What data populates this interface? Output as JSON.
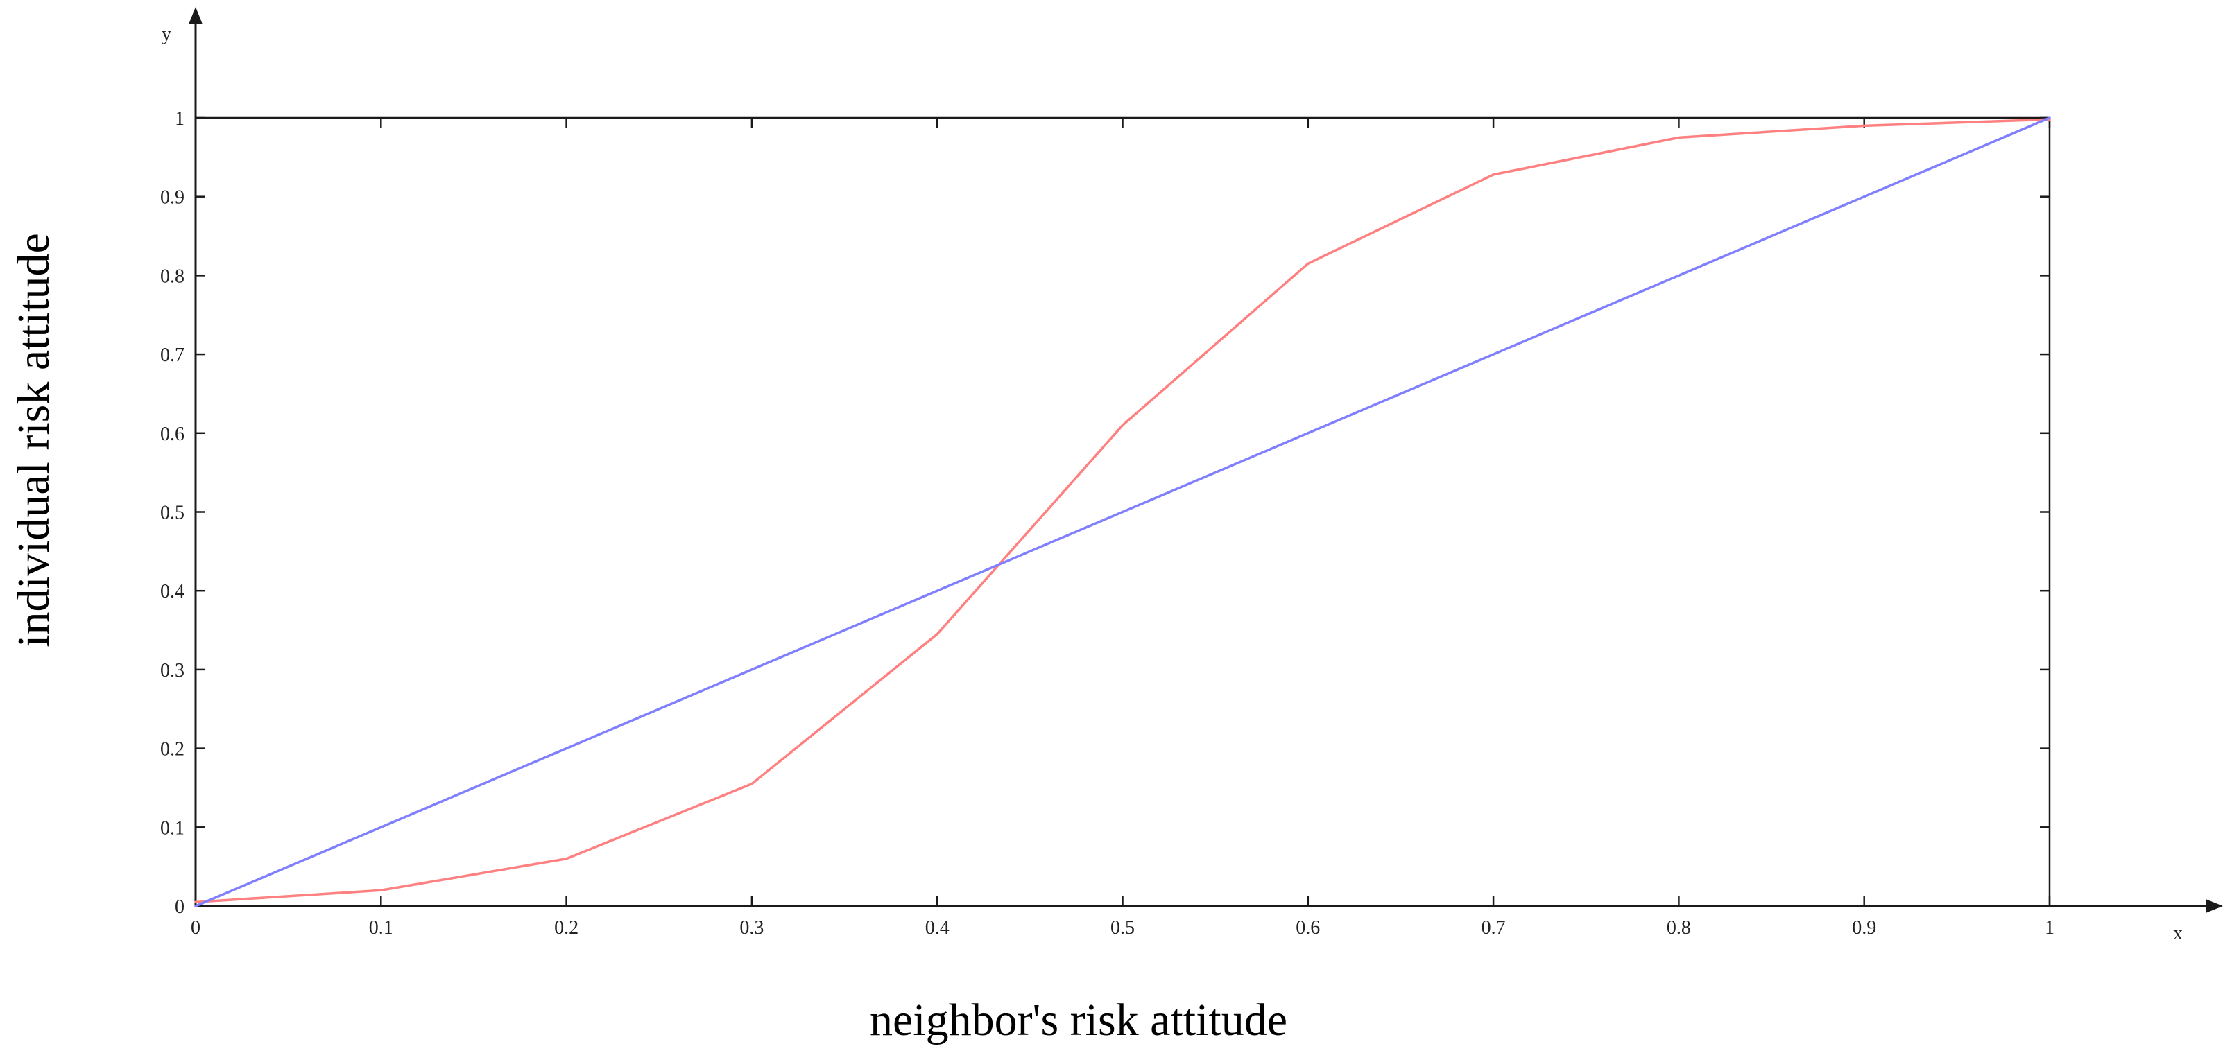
{
  "chart_data": {
    "type": "line",
    "title": "",
    "xlabel": "neighbor's risk attitude",
    "ylabel": "individual risk attitude",
    "x_axis_letter": "x",
    "y_axis_letter": "y",
    "xlim": [
      0,
      1
    ],
    "ylim": [
      0,
      1
    ],
    "grid": false,
    "legend": "none",
    "x_ticks": [
      "0",
      "0.1",
      "0.2",
      "0.3",
      "0.4",
      "0.5",
      "0.6",
      "0.7",
      "0.8",
      "0.9",
      "1"
    ],
    "y_ticks": [
      "0",
      "0.1",
      "0.2",
      "0.3",
      "0.4",
      "0.5",
      "0.6",
      "0.7",
      "0.8",
      "0.9",
      "1"
    ],
    "x_tick_values": [
      0,
      0.1,
      0.2,
      0.3,
      0.4,
      0.5,
      0.6,
      0.7,
      0.8,
      0.9,
      1
    ],
    "y_tick_values": [
      0,
      0.1,
      0.2,
      0.3,
      0.4,
      0.5,
      0.6,
      0.7,
      0.8,
      0.9,
      1
    ],
    "series": [
      {
        "color": "#ff8080",
        "x": [
          0,
          0.1,
          0.2,
          0.3,
          0.4,
          0.5,
          0.6,
          0.7,
          0.8,
          0.9,
          1
        ],
        "y": [
          0.005,
          0.02,
          0.06,
          0.155,
          0.345,
          0.61,
          0.815,
          0.928,
          0.975,
          0.99,
          0.998
        ]
      },
      {
        "color": "#8080ff",
        "x": [
          0,
          1
        ],
        "y": [
          0,
          1
        ]
      }
    ],
    "axis_color": "#1a1a1a"
  }
}
